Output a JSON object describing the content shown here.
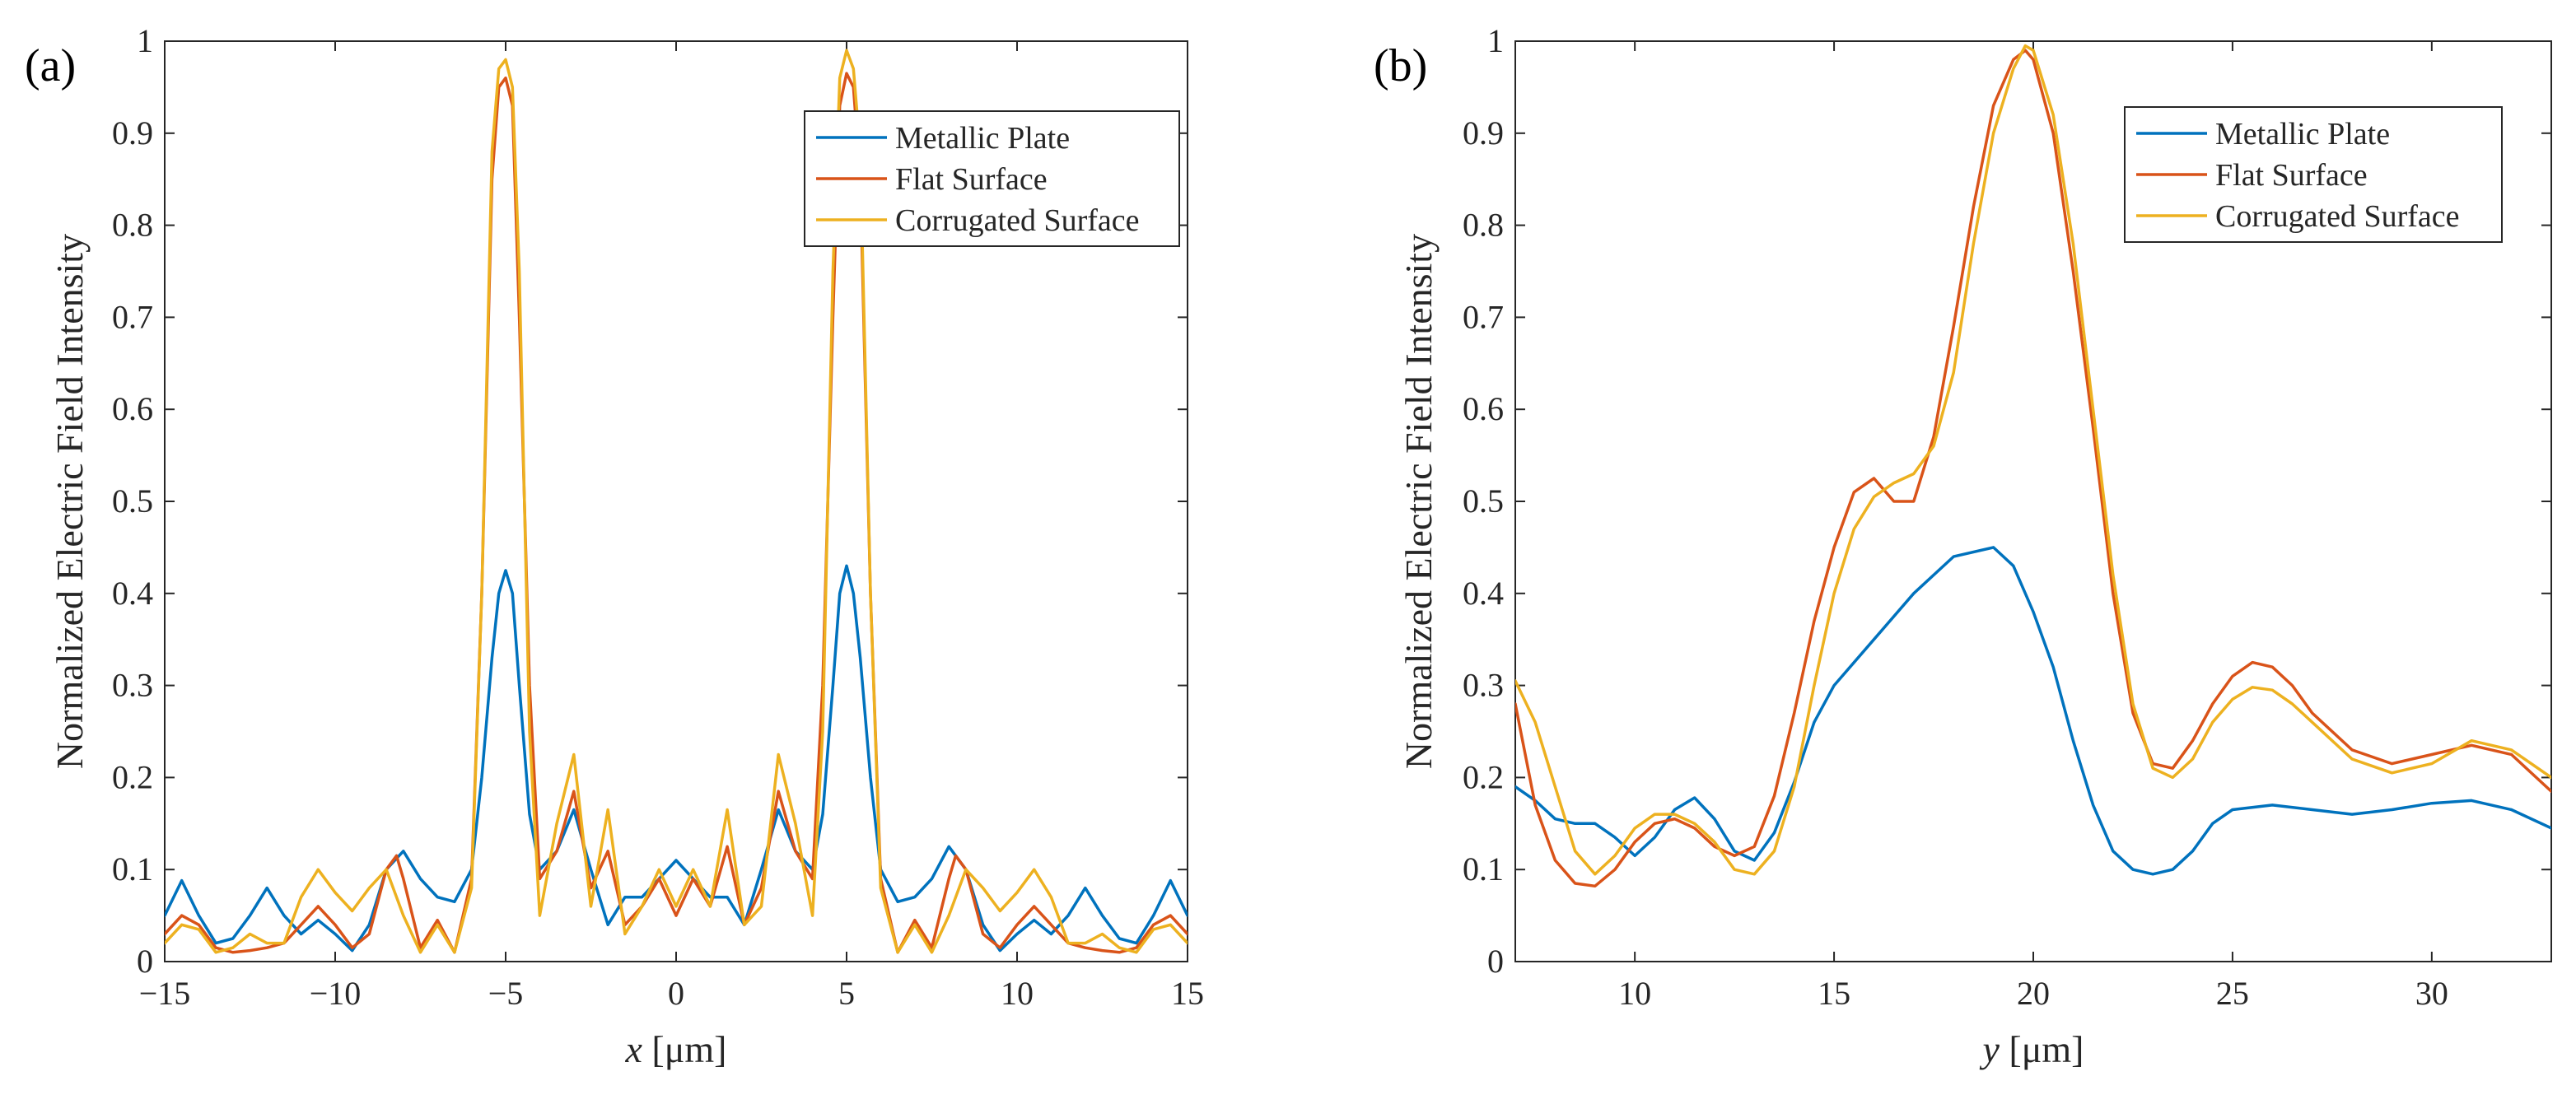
{
  "chart_data": [
    {
      "type": "line",
      "panel_label": "(a)",
      "xlabel_var": "x",
      "xlabel_unit": " [μm]",
      "ylabel": "Normalized Electric Field Intensity",
      "xlim": [
        -15,
        15
      ],
      "ylim": [
        0,
        1
      ],
      "xticks": [
        -15,
        -10,
        -5,
        0,
        5,
        10,
        15
      ],
      "xtick_labels": [
        "−15",
        "−10",
        "−5",
        "0",
        "5",
        "10",
        "15"
      ],
      "yticks": [
        0,
        0.1,
        0.2,
        0.3,
        0.4,
        0.5,
        0.6,
        0.7,
        0.8,
        0.9,
        1
      ],
      "ytick_labels": [
        "0",
        "0.1",
        "0.2",
        "0.3",
        "0.4",
        "0.5",
        "0.6",
        "0.7",
        "0.8",
        "0.9",
        "1"
      ],
      "legend": {
        "position": "top-right"
      },
      "series": [
        {
          "name": "Metallic Plate",
          "color": "#0072BD",
          "x": [
            -15,
            -14.5,
            -14,
            -13.5,
            -13,
            -12.5,
            -12,
            -11.5,
            -11,
            -10.5,
            -10,
            -9.5,
            -9,
            -8.5,
            -8,
            -7.5,
            -7,
            -6.5,
            -6,
            -5.7,
            -5.4,
            -5.2,
            -5,
            -4.8,
            -4.6,
            -4.3,
            -4,
            -3.5,
            -3,
            -2.5,
            -2,
            -1.5,
            -1,
            -0.5,
            0,
            0.5,
            1,
            1.5,
            2,
            2.5,
            3,
            3.5,
            4,
            4.3,
            4.6,
            4.8,
            5,
            5.2,
            5.4,
            5.7,
            6,
            6.5,
            7,
            7.5,
            8,
            8.5,
            9,
            9.5,
            10,
            10.5,
            11,
            11.5,
            12,
            12.5,
            13,
            13.5,
            14,
            14.5,
            15
          ],
          "y": [
            0.05,
            0.088,
            0.05,
            0.02,
            0.025,
            0.05,
            0.08,
            0.05,
            0.03,
            0.045,
            0.03,
            0.012,
            0.04,
            0.1,
            0.12,
            0.09,
            0.07,
            0.065,
            0.1,
            0.2,
            0.33,
            0.4,
            0.425,
            0.4,
            0.3,
            0.16,
            0.1,
            0.12,
            0.165,
            0.1,
            0.04,
            0.07,
            0.07,
            0.09,
            0.11,
            0.09,
            0.07,
            0.07,
            0.04,
            0.1,
            0.165,
            0.12,
            0.1,
            0.16,
            0.3,
            0.4,
            0.43,
            0.4,
            0.33,
            0.2,
            0.1,
            0.065,
            0.07,
            0.09,
            0.125,
            0.1,
            0.04,
            0.012,
            0.03,
            0.045,
            0.03,
            0.05,
            0.08,
            0.05,
            0.025,
            0.02,
            0.05,
            0.088,
            0.05
          ]
        },
        {
          "name": "Flat Surface",
          "color": "#D95319",
          "x": [
            -15,
            -14.5,
            -14,
            -13.5,
            -13,
            -12.5,
            -12,
            -11.5,
            -11,
            -10.5,
            -10,
            -9.5,
            -9,
            -8.5,
            -8.2,
            -8,
            -7.5,
            -7,
            -6.5,
            -6,
            -5.7,
            -5.4,
            -5.2,
            -5,
            -4.8,
            -4.6,
            -4.3,
            -4,
            -3.5,
            -3,
            -2.5,
            -2,
            -1.5,
            -1,
            -0.5,
            0,
            0.5,
            1,
            1.5,
            2,
            2.5,
            3,
            3.5,
            4,
            4.3,
            4.6,
            4.8,
            5,
            5.2,
            5.4,
            5.7,
            6,
            6.5,
            7,
            7.5,
            8,
            8.2,
            8.5,
            9,
            9.5,
            10,
            10.5,
            11,
            11.5,
            12,
            12.5,
            13,
            13.5,
            14,
            14.5,
            15
          ],
          "y": [
            0.03,
            0.05,
            0.04,
            0.015,
            0.01,
            0.012,
            0.015,
            0.02,
            0.04,
            0.06,
            0.04,
            0.015,
            0.03,
            0.1,
            0.115,
            0.09,
            0.015,
            0.045,
            0.01,
            0.09,
            0.4,
            0.85,
            0.95,
            0.96,
            0.93,
            0.7,
            0.3,
            0.09,
            0.12,
            0.185,
            0.08,
            0.12,
            0.04,
            0.06,
            0.09,
            0.05,
            0.09,
            0.06,
            0.125,
            0.04,
            0.08,
            0.185,
            0.12,
            0.09,
            0.3,
            0.7,
            0.93,
            0.965,
            0.95,
            0.85,
            0.4,
            0.09,
            0.01,
            0.045,
            0.015,
            0.09,
            0.115,
            0.1,
            0.03,
            0.015,
            0.04,
            0.06,
            0.04,
            0.02,
            0.015,
            0.012,
            0.01,
            0.015,
            0.04,
            0.05,
            0.03
          ]
        },
        {
          "name": "Corrugated Surface",
          "color": "#EDB120",
          "x": [
            -15,
            -14.5,
            -14,
            -13.5,
            -13,
            -12.5,
            -12,
            -11.5,
            -11,
            -10.5,
            -10,
            -9.5,
            -9,
            -8.5,
            -8,
            -7.5,
            -7,
            -6.5,
            -6,
            -5.7,
            -5.4,
            -5.2,
            -5,
            -4.8,
            -4.6,
            -4.3,
            -4,
            -3.5,
            -3,
            -2.5,
            -2,
            -1.5,
            -1,
            -0.5,
            0,
            0.5,
            1,
            1.5,
            2,
            2.5,
            3,
            3.5,
            4,
            4.3,
            4.6,
            4.8,
            5,
            5.2,
            5.4,
            5.7,
            6,
            6.5,
            7,
            7.5,
            8,
            8.5,
            9,
            9.5,
            10,
            10.5,
            11,
            11.5,
            12,
            12.5,
            13,
            13.5,
            14,
            14.5,
            15
          ],
          "y": [
            0.02,
            0.04,
            0.035,
            0.01,
            0.015,
            0.03,
            0.02,
            0.02,
            0.07,
            0.1,
            0.075,
            0.055,
            0.08,
            0.1,
            0.05,
            0.01,
            0.04,
            0.01,
            0.08,
            0.4,
            0.88,
            0.97,
            0.98,
            0.95,
            0.75,
            0.25,
            0.05,
            0.15,
            0.225,
            0.06,
            0.165,
            0.03,
            0.06,
            0.1,
            0.06,
            0.1,
            0.06,
            0.165,
            0.04,
            0.06,
            0.225,
            0.15,
            0.05,
            0.25,
            0.75,
            0.96,
            0.99,
            0.97,
            0.88,
            0.4,
            0.08,
            0.01,
            0.04,
            0.01,
            0.05,
            0.1,
            0.08,
            0.055,
            0.075,
            0.1,
            0.07,
            0.02,
            0.02,
            0.03,
            0.015,
            0.01,
            0.035,
            0.04,
            0.02
          ]
        }
      ]
    },
    {
      "type": "line",
      "panel_label": "(b)",
      "xlabel_var": "y",
      "xlabel_unit": " [μm]",
      "ylabel": "Normalized Electric Field Intensity",
      "xlim": [
        7,
        33
      ],
      "ylim": [
        0,
        1
      ],
      "xticks": [
        10,
        15,
        20,
        25,
        30
      ],
      "xtick_labels": [
        "10",
        "15",
        "20",
        "25",
        "30"
      ],
      "yticks": [
        0,
        0.1,
        0.2,
        0.3,
        0.4,
        0.5,
        0.6,
        0.7,
        0.8,
        0.9,
        1
      ],
      "ytick_labels": [
        "0",
        "0.1",
        "0.2",
        "0.3",
        "0.4",
        "0.5",
        "0.6",
        "0.7",
        "0.8",
        "0.9",
        "1"
      ],
      "legend": {
        "position": "top-right"
      },
      "series": [
        {
          "name": "Metallic Plate",
          "color": "#0072BD",
          "x": [
            7,
            7.5,
            8,
            8.5,
            9,
            9.5,
            10,
            10.5,
            11,
            11.5,
            12,
            12.5,
            13,
            13.5,
            14,
            14.5,
            15,
            16,
            17,
            18,
            19,
            19.5,
            20,
            20.5,
            21,
            21.5,
            22,
            22.5,
            23,
            23.5,
            24,
            24.5,
            25,
            26,
            27,
            28,
            29,
            30,
            31,
            32,
            33
          ],
          "y": [
            0.19,
            0.175,
            0.155,
            0.15,
            0.15,
            0.135,
            0.115,
            0.135,
            0.165,
            0.178,
            0.155,
            0.12,
            0.11,
            0.14,
            0.195,
            0.26,
            0.3,
            0.35,
            0.4,
            0.44,
            0.45,
            0.43,
            0.38,
            0.32,
            0.24,
            0.17,
            0.12,
            0.1,
            0.095,
            0.1,
            0.12,
            0.15,
            0.165,
            0.17,
            0.165,
            0.16,
            0.165,
            0.172,
            0.175,
            0.165,
            0.145
          ]
        },
        {
          "name": "Flat Surface",
          "color": "#D95319",
          "x": [
            7,
            7.5,
            8,
            8.5,
            9,
            9.5,
            10,
            10.5,
            11,
            11.5,
            12,
            12.5,
            13,
            13.5,
            14,
            14.5,
            15,
            15.5,
            16,
            16.5,
            17,
            17.5,
            18,
            18.5,
            19,
            19.5,
            19.8,
            20,
            20.5,
            21,
            21.5,
            22,
            22.5,
            23,
            23.5,
            24,
            24.5,
            25,
            25.5,
            26,
            26.5,
            27,
            28,
            29,
            30,
            31,
            32,
            33
          ],
          "y": [
            0.28,
            0.17,
            0.11,
            0.085,
            0.082,
            0.1,
            0.13,
            0.15,
            0.155,
            0.145,
            0.125,
            0.115,
            0.125,
            0.18,
            0.27,
            0.37,
            0.45,
            0.51,
            0.525,
            0.5,
            0.5,
            0.57,
            0.69,
            0.82,
            0.93,
            0.98,
            0.99,
            0.98,
            0.9,
            0.75,
            0.58,
            0.4,
            0.27,
            0.215,
            0.21,
            0.24,
            0.28,
            0.31,
            0.325,
            0.32,
            0.3,
            0.27,
            0.23,
            0.215,
            0.225,
            0.235,
            0.225,
            0.185
          ]
        },
        {
          "name": "Corrugated Surface",
          "color": "#EDB120",
          "x": [
            7,
            7.5,
            8,
            8.5,
            9,
            9.5,
            10,
            10.5,
            11,
            11.5,
            12,
            12.5,
            13,
            13.5,
            14,
            14.5,
            15,
            15.5,
            16,
            16.5,
            17,
            17.5,
            18,
            18.5,
            19,
            19.5,
            19.8,
            20,
            20.5,
            21,
            21.5,
            22,
            22.5,
            23,
            23.5,
            24,
            24.5,
            25,
            25.5,
            26,
            26.5,
            27,
            28,
            29,
            30,
            31,
            32,
            33
          ],
          "y": [
            0.305,
            0.26,
            0.19,
            0.12,
            0.095,
            0.115,
            0.145,
            0.16,
            0.16,
            0.15,
            0.13,
            0.1,
            0.095,
            0.12,
            0.19,
            0.3,
            0.4,
            0.47,
            0.505,
            0.52,
            0.53,
            0.56,
            0.64,
            0.78,
            0.9,
            0.97,
            0.995,
            0.99,
            0.92,
            0.78,
            0.6,
            0.42,
            0.28,
            0.21,
            0.2,
            0.22,
            0.26,
            0.285,
            0.298,
            0.295,
            0.28,
            0.26,
            0.22,
            0.205,
            0.215,
            0.24,
            0.23,
            0.2
          ]
        }
      ]
    }
  ]
}
